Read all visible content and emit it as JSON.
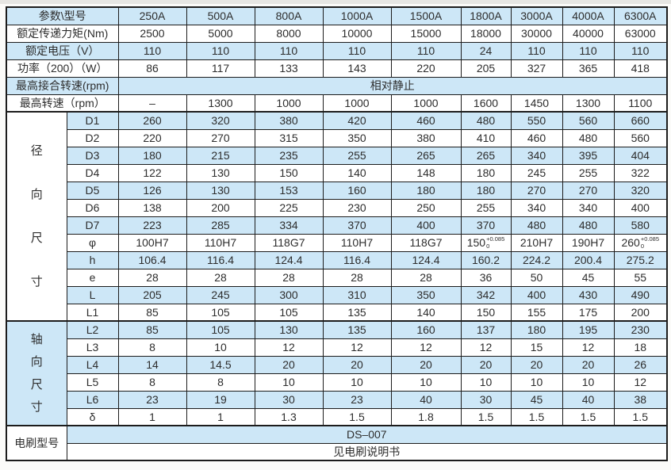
{
  "colors": {
    "row_blue": "#cde7f7",
    "row_white": "#ffffff",
    "border": "#1c1c1c",
    "text": "#2d2d2d"
  },
  "table": {
    "corner_label": "参数\\型号",
    "models": [
      "250A",
      "500A",
      "800A",
      "1000A",
      "1500A",
      "1800A",
      "3000A",
      "4000A",
      "6300A"
    ],
    "param_rows": [
      {
        "label": "额定传递力矩(Nm)",
        "values": [
          "2500",
          "5000",
          "8000",
          "10000",
          "15000",
          "18000",
          "30000",
          "40000",
          "63000"
        ]
      },
      {
        "label": "额定电压（V）",
        "values": [
          "110",
          "110",
          "110",
          "110",
          "110",
          "24",
          "110",
          "110",
          "110"
        ]
      },
      {
        "label": "功率（200）（W）",
        "values": [
          "86",
          "117",
          "133",
          "143",
          "220",
          "205",
          "327",
          "365",
          "418"
        ]
      },
      {
        "label": "最高接合转速(rpm)",
        "merged_value": "相对静止"
      },
      {
        "label": "最高转速（rpm）",
        "values": [
          "–",
          "1300",
          "1000",
          "1000",
          "1000",
          "1600",
          "1450",
          "1300",
          "1100"
        ]
      }
    ],
    "dimension_sections": [
      {
        "group_label": "径向尺寸",
        "group_chars": [
          "径",
          "向",
          "尺",
          "寸"
        ],
        "rows": [
          {
            "label": "D1",
            "values": [
              "260",
              "320",
              "380",
              "420",
              "460",
              "480",
              "550",
              "560",
              "660"
            ]
          },
          {
            "label": "D2",
            "values": [
              "220",
              "270",
              "315",
              "350",
              "380",
              "410",
              "460",
              "480",
              "560"
            ]
          },
          {
            "label": "D3",
            "values": [
              "180",
              "215",
              "235",
              "255",
              "265",
              "265",
              "340",
              "395",
              "404"
            ]
          },
          {
            "label": "D4",
            "values": [
              "122",
              "130",
              "150",
              "140",
              "148",
              "180",
              "245",
              "255",
              "322"
            ]
          },
          {
            "label": "D5",
            "values": [
              "126",
              "130",
              "153",
              "160",
              "180",
              "180",
              "270",
              "270",
              "320"
            ]
          },
          {
            "label": "D6",
            "values": [
              "138",
              "200",
              "225",
              "230",
              "250",
              "255",
              "340",
              "340",
              "400"
            ]
          },
          {
            "label": "D7",
            "values": [
              "223",
              "285",
              "334",
              "370",
              "400",
              "370",
              "480",
              "480",
              "580"
            ]
          },
          {
            "label": "φ",
            "values": [
              "100H7",
              "110H7",
              "118G7",
              "110H7",
              "118G7",
              {
                "base": "150",
                "sup": "+0.085",
                "sub": "0"
              },
              "210H7",
              "190H7",
              {
                "base": "260",
                "sup": "+0.085",
                "sub": "0"
              }
            ]
          },
          {
            "label": "h",
            "values": [
              "106.4",
              "116.4",
              "124.4",
              "116.4",
              "124.4",
              "160.2",
              "224.2",
              "200.4",
              "275.2"
            ]
          },
          {
            "label": "e",
            "values": [
              "28",
              "28",
              "28",
              "28",
              "28",
              "36",
              "50",
              "45",
              "55"
            ]
          },
          {
            "label": "L",
            "values": [
              "205",
              "245",
              "300",
              "310",
              "350",
              "342",
              "400",
              "430",
              "490"
            ]
          },
          {
            "label": "L1",
            "values": [
              "85",
              "105",
              "105",
              "135",
              "140",
              "150",
              "155",
              "175",
              "200"
            ]
          }
        ]
      },
      {
        "group_label": "轴向尺寸",
        "group_chars": [
          "轴",
          "向",
          "尺",
          "寸"
        ],
        "rows": [
          {
            "label": "L2",
            "values": [
              "85",
              "105",
              "130",
              "135",
              "160",
              "137",
              "180",
              "195",
              "230"
            ]
          },
          {
            "label": "L3",
            "values": [
              "8",
              "10",
              "12",
              "12",
              "12",
              "12",
              "15",
              "12",
              "18"
            ]
          },
          {
            "label": "L4",
            "values": [
              "14",
              "14.5",
              "20",
              "20",
              "20",
              "20",
              "20",
              "20",
              "26"
            ]
          },
          {
            "label": "L5",
            "values": [
              "8",
              "8",
              "10",
              "10",
              "10",
              "10",
              "10",
              "10",
              "12"
            ]
          },
          {
            "label": "L6",
            "values": [
              "23",
              "19",
              "30",
              "23",
              "40",
              "30",
              "45",
              "40",
              "38"
            ]
          },
          {
            "label": "δ",
            "values": [
              "1",
              "1",
              "1.3",
              "1.5",
              "1.8",
              "1.5",
              "1.5",
              "1.5",
              "1.5"
            ]
          }
        ]
      }
    ],
    "brush_section": {
      "label": "电刷型号",
      "rows": [
        "DS–007",
        "见电刷说明书"
      ]
    }
  }
}
